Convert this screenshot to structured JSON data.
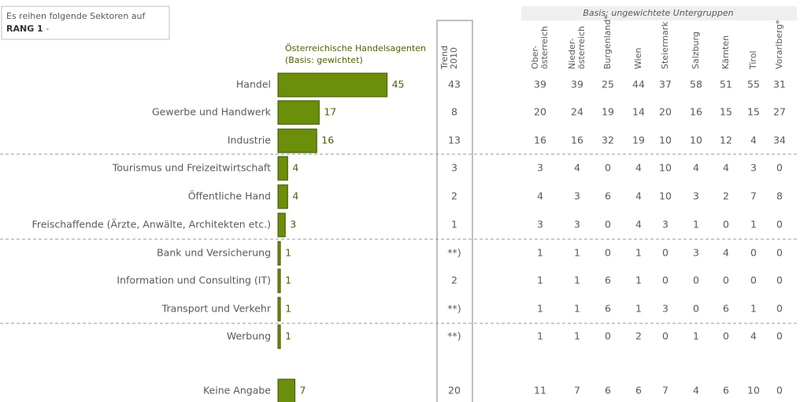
{
  "chart_data": {
    "type": "hbar",
    "note_line1": "Es reihen folgende Sektoren auf",
    "note_bold": "RANG 1",
    "note_suffix": " -",
    "series_label": "Österreichische Handelsagenten",
    "series_sublabel": "(Basis: gewichtet)",
    "color": "#6b8e0b",
    "categories": [
      "Handel",
      "Gewerbe und Handwerk",
      "Industrie",
      "Tourismus und Freizeitwirtschaft",
      "Öffentliche Hand",
      "Freischaffende (Ärzte, Anwälte, Architekten etc.)",
      "Bank und Versicherung",
      "Information und Consulting (IT)",
      "Transport und Verkehr",
      "Werbung",
      "Keine Angabe"
    ],
    "values": [
      45,
      17,
      16,
      4,
      4,
      3,
      1,
      1,
      1,
      1,
      7
    ],
    "trend": {
      "label": [
        "Trend",
        "2010"
      ],
      "values": [
        "43",
        "8",
        "13",
        "3",
        "2",
        "1",
        "**)",
        "2",
        "**)",
        "**)",
        "20"
      ]
    },
    "regions": {
      "title": "Basis: ungewichtete Untergruppen",
      "names": [
        [
          "Ober-",
          "österreich"
        ],
        [
          "Nieder-",
          "österreich"
        ],
        [
          "Burgenland*"
        ],
        [
          "Wien"
        ],
        [
          "Steiermark"
        ],
        [
          "Salzburg"
        ],
        [
          "Kärnten"
        ],
        [
          "Tirol"
        ],
        [
          "Vorarlberg*"
        ]
      ],
      "rows": [
        [
          "39",
          "39",
          "25",
          "44",
          "37",
          "58",
          "51",
          "55",
          "31"
        ],
        [
          "20",
          "24",
          "19",
          "14",
          "20",
          "16",
          "15",
          "15",
          "27"
        ],
        [
          "16",
          "16",
          "32",
          "19",
          "10",
          "10",
          "12",
          "4",
          "34"
        ],
        [
          "3",
          "4",
          "0",
          "4",
          "10",
          "4",
          "4",
          "3",
          "0"
        ],
        [
          "4",
          "3",
          "6",
          "4",
          "10",
          "3",
          "2",
          "7",
          "8"
        ],
        [
          "3",
          "3",
          "0",
          "4",
          "3",
          "1",
          "0",
          "1",
          "0"
        ],
        [
          "1",
          "1",
          "0",
          "1",
          "0",
          "3",
          "4",
          "0",
          "0"
        ],
        [
          "1",
          "1",
          "6",
          "1",
          "0",
          "0",
          "0",
          "0",
          "0"
        ],
        [
          "1",
          "1",
          "6",
          "1",
          "3",
          "0",
          "6",
          "1",
          "0"
        ],
        [
          "1",
          "1",
          "0",
          "2",
          "0",
          "1",
          "0",
          "4",
          "0"
        ],
        [
          "11",
          "7",
          "6",
          "6",
          "7",
          "4",
          "6",
          "10",
          "0"
        ]
      ]
    }
  }
}
